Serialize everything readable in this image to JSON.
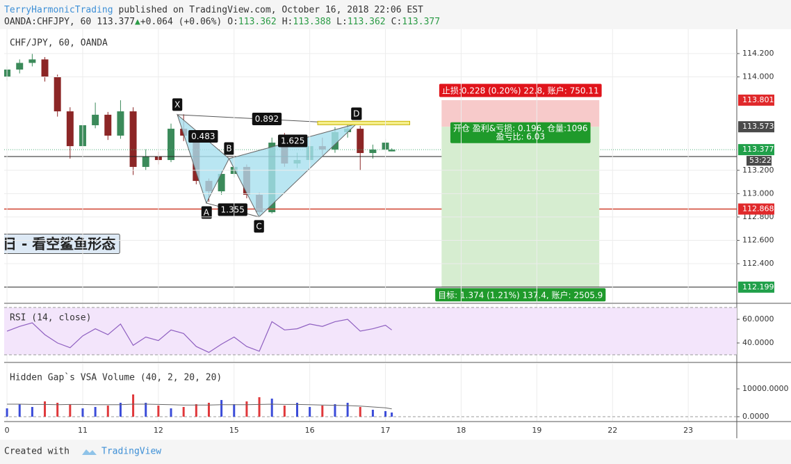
{
  "header": {
    "publisher": "TerryHarmonicTrading",
    "published": "published on TradingView.com, October 16, 2018 22:06 EST",
    "symbol": "OANDA:CHFJPY, 60",
    "arrow": "▲",
    "change": "+0.064 (+0.06%)",
    "o": "O:",
    "h": "H:",
    "l": "L:",
    "c": "C:"
  },
  "chart_data": [
    {
      "type": "candlestick",
      "title": "CHF/JPY, 60, OANDA",
      "x": [
        0,
        4,
        8,
        12,
        16,
        20,
        24,
        28,
        32,
        36,
        40,
        44,
        48,
        52,
        56,
        60,
        64,
        68,
        72,
        76,
        80,
        84,
        88,
        92,
        96,
        100,
        104,
        108,
        112,
        116,
        120,
        122
      ],
      "open": [
        114.0,
        114.063,
        114.12,
        114.15,
        114.003,
        113.705,
        113.407,
        113.586,
        113.676,
        113.497,
        113.705,
        113.229,
        113.318,
        113.288,
        113.556,
        113.497,
        113.109,
        113.02,
        113.169,
        113.229,
        112.99,
        112.841,
        113.437,
        113.258,
        113.288,
        113.407,
        113.378,
        113.527,
        113.556,
        113.348,
        113.378,
        113.362
      ],
      "high": [
        114.09,
        114.15,
        114.2,
        114.17,
        114.02,
        113.74,
        113.62,
        113.78,
        113.7,
        113.8,
        113.74,
        113.38,
        113.36,
        113.6,
        113.68,
        113.52,
        113.13,
        113.2,
        113.31,
        113.25,
        113.01,
        113.48,
        113.52,
        113.35,
        113.45,
        113.48,
        113.57,
        113.6,
        113.58,
        113.42,
        113.47,
        113.388
      ],
      "low": [
        113.97,
        114.03,
        114.09,
        113.96,
        113.66,
        113.3,
        113.38,
        113.56,
        113.46,
        113.47,
        113.16,
        113.2,
        113.25,
        113.27,
        113.45,
        113.08,
        112.93,
        112.99,
        113.14,
        112.96,
        112.8,
        112.83,
        113.23,
        113.22,
        113.27,
        113.33,
        113.35,
        113.48,
        113.2,
        113.3,
        113.34,
        113.362
      ],
      "close": [
        114.063,
        114.12,
        114.15,
        114.003,
        113.705,
        113.407,
        113.586,
        113.676,
        113.497,
        113.705,
        113.229,
        113.318,
        113.288,
        113.556,
        113.497,
        113.109,
        113.02,
        113.169,
        113.229,
        112.99,
        112.841,
        113.437,
        113.258,
        113.288,
        113.407,
        113.378,
        113.527,
        113.556,
        113.348,
        113.378,
        113.437,
        113.377
      ],
      "up_color": "#3b8a5a",
      "down_color": "#8c2626",
      "xlim": [
        -0.9,
        231.4
      ],
      "xticks": [
        0,
        {
          "value": 24,
          "label": "11"
        },
        {
          "value": 48,
          "label": "12"
        },
        {
          "value": 72,
          "label": "15"
        },
        {
          "value": 96,
          "label": "16"
        },
        {
          "value": 120,
          "label": "17"
        },
        {
          "value": 144,
          "label": "18"
        },
        {
          "value": 168,
          "label": "19"
        },
        {
          "value": 192,
          "label": "22"
        },
        {
          "value": 216,
          "label": "23"
        }
      ],
      "ylim": [
        112.0665,
        114.4086
      ],
      "yticks": [
        {
          "value": 114.2,
          "label": "114.200"
        },
        {
          "value": 114.0,
          "label": "114.000"
        },
        {
          "value": 113.2,
          "label": "113.200"
        },
        {
          "value": 113.0,
          "label": "113.000"
        },
        {
          "value": 112.8,
          "label": "112.800"
        },
        {
          "value": 112.6,
          "label": "112.600"
        },
        {
          "value": 112.4,
          "label": "112.400"
        }
      ],
      "grid": true,
      "pattern": {
        "labels": [
          "X",
          "A",
          "B",
          "C",
          "D"
        ],
        "x": [
          54,
          63.2,
          70.4,
          79.9,
          110.8
        ],
        "y": [
          113.676,
          112.919,
          113.3,
          112.8,
          113.598
        ],
        "ratios": [
          0.483,
          0.892,
          1.355,
          1.625
        ],
        "color": "#a8e0ef"
      },
      "lines": {
        "support": 112.868,
        "level": 113.318
      },
      "zone": {
        "x": [
          98.5,
          127.7
        ],
        "y": [
          113.59,
          113.62
        ]
      },
      "position": {
        "x": [
          137.8,
          187.8
        ],
        "stop": 113.801,
        "entry": 113.573,
        "target": 112.199,
        "stop_label": "止损:0.228 (0.20%) 22.8, 账户: 750.11",
        "open_label": "开仓 盈利&亏损: 0.196, 仓量:1096",
        "ratio_label": "盈亏比: 6.03",
        "target_label": "目标: 1.374 (1.21%) 137.4, 账户: 2505.9"
      },
      "countdown": "53:22",
      "note": "日 - 看空鲨鱼形态"
    },
    {
      "type": "line",
      "title": "RSI (14, close)",
      "values": [
        50,
        54,
        57,
        47,
        40,
        36,
        46,
        52,
        47,
        56,
        38,
        45,
        42,
        51,
        48,
        37,
        32,
        39,
        45,
        37,
        33,
        58,
        51,
        52,
        56,
        54,
        58,
        60,
        50,
        52,
        55,
        51
      ],
      "color": "#8e5fc0",
      "band": [
        30,
        70
      ],
      "band_color": "#f3e5fb",
      "ylim": [
        24.12,
        72.94
      ],
      "yticks": [
        {
          "value": 60,
          "label": "60.0000"
        },
        {
          "value": 40,
          "label": "40.0000"
        }
      ]
    },
    {
      "type": "bar",
      "title": "Hidden Gap`s VSA Volume (40, 2, 20, 20)",
      "values": [
        3000,
        4500,
        3500,
        5500,
        5000,
        4500,
        3000,
        3500,
        4000,
        5000,
        8000,
        5000,
        4000,
        3000,
        3500,
        4500,
        5000,
        6000,
        4500,
        5500,
        7000,
        6500,
        4000,
        5000,
        3500,
        4000,
        4500,
        5000,
        3500,
        2500,
        2000,
        1500
      ],
      "average": [
        4500,
        4500,
        4400,
        4400,
        4300,
        4400,
        4400,
        4300,
        4300,
        4300,
        4500,
        4500,
        4400,
        4300,
        4200,
        4200,
        4200,
        4300,
        4300,
        4300,
        4400,
        4500,
        4400,
        4400,
        4300,
        4200,
        4100,
        4000,
        3800,
        3500,
        3200,
        2800
      ],
      "up_color": "#3b4cd9",
      "down_color": "#e0383b",
      "average_color": "#666666",
      "ylim": [
        -1500,
        19000
      ],
      "yticks": [
        {
          "value": 10000,
          "label": "10000.0000"
        },
        {
          "value": 0,
          "label": "0.0000"
        }
      ]
    }
  ],
  "footer": {
    "created": "Created with",
    "brand": "TradingView"
  }
}
